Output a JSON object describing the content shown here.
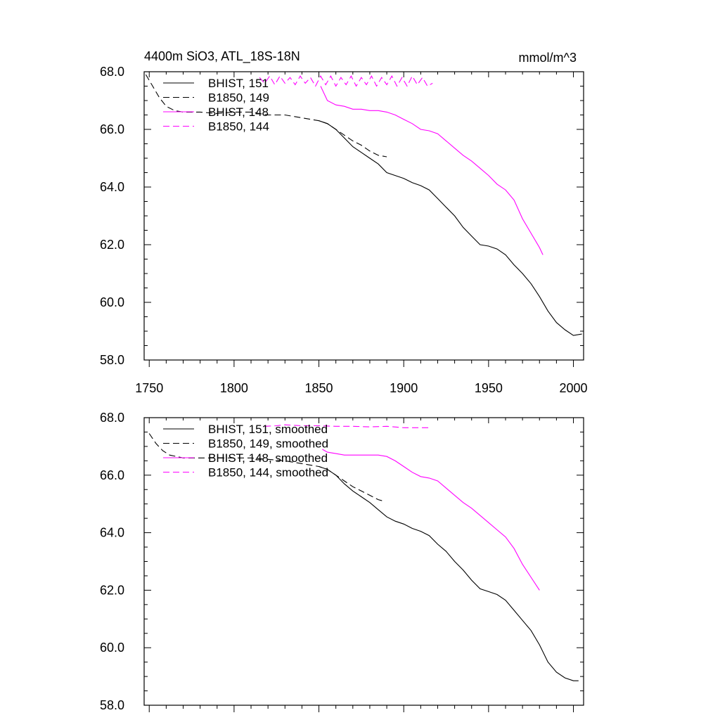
{
  "chart_data": [
    {
      "type": "line",
      "title": "4400m SiO3, ATL_18S-18N",
      "units": "mmol/m^3",
      "xlim": [
        1747,
        2006
      ],
      "ylim": [
        58,
        68
      ],
      "xticks": [
        1750,
        1800,
        1850,
        1900,
        1950,
        2000
      ],
      "yticks": [
        58,
        60,
        62,
        64,
        66,
        68
      ],
      "ytick_labels": [
        "58.0",
        "60.0",
        "62.0",
        "64.0",
        "66.0",
        "68.0"
      ],
      "xtick_labels": [
        "1750",
        "1800",
        "1850",
        "1900",
        "1950",
        "2000"
      ],
      "show_xtick_labels": true,
      "grid": false,
      "legend_position": "top-left",
      "series": [
        {
          "name": "BHIST, 151",
          "color": "#000000",
          "dash": "solid",
          "x": [
            1850,
            1855,
            1860,
            1865,
            1870,
            1875,
            1880,
            1885,
            1890,
            1895,
            1900,
            1905,
            1910,
            1915,
            1920,
            1925,
            1930,
            1935,
            1940,
            1945,
            1950,
            1955,
            1960,
            1965,
            1970,
            1975,
            1980,
            1985,
            1990,
            1995,
            2000,
            2005
          ],
          "y": [
            66.3,
            66.2,
            66.0,
            65.7,
            65.4,
            65.2,
            65.0,
            64.8,
            64.5,
            64.4,
            64.3,
            64.15,
            64.05,
            63.9,
            63.6,
            63.3,
            63.0,
            62.6,
            62.3,
            62.0,
            61.95,
            61.85,
            61.65,
            61.3,
            61.0,
            60.65,
            60.2,
            59.7,
            59.3,
            59.05,
            58.85,
            58.9
          ]
        },
        {
          "name": "B1850, 149",
          "color": "#000000",
          "dash": "dashed",
          "x": [
            1748,
            1752,
            1756,
            1760,
            1765,
            1770,
            1780,
            1790,
            1800,
            1810,
            1820,
            1830,
            1840,
            1850,
            1855,
            1860,
            1865,
            1870,
            1875,
            1880,
            1885,
            1890
          ],
          "y": [
            67.9,
            67.5,
            67.1,
            66.8,
            66.65,
            66.6,
            66.6,
            66.55,
            66.6,
            66.6,
            66.5,
            66.5,
            66.4,
            66.3,
            66.2,
            66.0,
            65.8,
            65.6,
            65.45,
            65.25,
            65.1,
            65.05
          ]
        },
        {
          "name": "BHIST, 148",
          "color": "#ff00ff",
          "dash": "solid",
          "x": [
            1851,
            1855,
            1860,
            1865,
            1870,
            1875,
            1880,
            1885,
            1890,
            1895,
            1900,
            1905,
            1910,
            1915,
            1920,
            1925,
            1930,
            1935,
            1940,
            1945,
            1950,
            1955,
            1960,
            1965,
            1970,
            1975,
            1980,
            1982
          ],
          "y": [
            67.5,
            67.0,
            66.85,
            66.8,
            66.7,
            66.7,
            66.65,
            66.65,
            66.6,
            66.5,
            66.35,
            66.2,
            66.0,
            65.95,
            65.85,
            65.6,
            65.35,
            65.1,
            64.9,
            64.65,
            64.4,
            64.1,
            63.9,
            63.55,
            62.9,
            62.4,
            61.9,
            61.65
          ]
        },
        {
          "name": "B1850, 144",
          "color": "#ff00ff",
          "dash": "dashed",
          "x": [
            1815,
            1818,
            1821,
            1824,
            1827,
            1830,
            1833,
            1836,
            1839,
            1842,
            1845,
            1848,
            1851,
            1854,
            1857,
            1860,
            1863,
            1866,
            1869,
            1872,
            1875,
            1878,
            1881,
            1884,
            1887,
            1890,
            1893,
            1896,
            1899,
            1902,
            1905,
            1908,
            1911,
            1914,
            1917
          ],
          "y": [
            67.8,
            67.6,
            67.85,
            67.55,
            67.85,
            67.6,
            67.8,
            67.55,
            67.85,
            67.6,
            67.8,
            67.5,
            67.85,
            67.55,
            67.85,
            67.5,
            67.8,
            67.55,
            67.85,
            67.5,
            67.8,
            67.55,
            67.85,
            67.5,
            67.8,
            67.55,
            67.85,
            67.5,
            67.8,
            67.5,
            67.85,
            67.55,
            67.8,
            67.5,
            67.6
          ]
        }
      ]
    },
    {
      "type": "line",
      "title": "",
      "units": "",
      "xlim": [
        1747,
        2006
      ],
      "ylim": [
        58,
        68
      ],
      "xticks": [
        1750,
        1800,
        1850,
        1900,
        1950,
        2000
      ],
      "yticks": [
        58,
        60,
        62,
        64,
        66,
        68
      ],
      "ytick_labels": [
        "58.0",
        "60.0",
        "62.0",
        "64.0",
        "66.0",
        "68.0"
      ],
      "xtick_labels": [],
      "show_xtick_labels": false,
      "grid": false,
      "legend_position": "top-left",
      "series": [
        {
          "name": "BHIST, 151, smoothed",
          "color": "#000000",
          "dash": "solid",
          "x": [
            1850,
            1855,
            1860,
            1865,
            1870,
            1875,
            1880,
            1885,
            1890,
            1895,
            1900,
            1905,
            1910,
            1915,
            1920,
            1925,
            1930,
            1935,
            1940,
            1945,
            1950,
            1955,
            1960,
            1965,
            1970,
            1975,
            1980,
            1985,
            1990,
            1995,
            2000,
            2003
          ],
          "y": [
            66.3,
            66.2,
            66.0,
            65.7,
            65.45,
            65.25,
            65.05,
            64.8,
            64.55,
            64.4,
            64.3,
            64.15,
            64.05,
            63.9,
            63.6,
            63.35,
            63.0,
            62.7,
            62.35,
            62.05,
            61.95,
            61.85,
            61.65,
            61.3,
            60.95,
            60.6,
            60.1,
            59.5,
            59.15,
            58.95,
            58.85,
            58.85
          ]
        },
        {
          "name": "B1850, 149, smoothed",
          "color": "#000000",
          "dash": "dashed",
          "x": [
            1750,
            1754,
            1758,
            1762,
            1766,
            1770,
            1780,
            1790,
            1800,
            1810,
            1820,
            1830,
            1840,
            1850,
            1855,
            1860,
            1865,
            1870,
            1875,
            1880,
            1885,
            1888
          ],
          "y": [
            67.45,
            67.1,
            66.85,
            66.7,
            66.65,
            66.6,
            66.6,
            66.6,
            66.6,
            66.6,
            66.55,
            66.5,
            66.4,
            66.3,
            66.2,
            66.0,
            65.8,
            65.6,
            65.45,
            65.3,
            65.15,
            65.1
          ]
        },
        {
          "name": "BHIST, 148, smoothed",
          "color": "#ff00ff",
          "dash": "solid",
          "x": [
            1852,
            1855,
            1860,
            1865,
            1870,
            1875,
            1880,
            1885,
            1890,
            1895,
            1900,
            1905,
            1910,
            1915,
            1920,
            1925,
            1930,
            1935,
            1940,
            1945,
            1950,
            1955,
            1960,
            1965,
            1970,
            1975,
            1980
          ],
          "y": [
            66.9,
            66.8,
            66.75,
            66.7,
            66.7,
            66.7,
            66.7,
            66.7,
            66.65,
            66.5,
            66.3,
            66.1,
            65.95,
            65.9,
            65.8,
            65.55,
            65.3,
            65.05,
            64.85,
            64.6,
            64.35,
            64.1,
            63.85,
            63.45,
            62.9,
            62.45,
            62.0
          ]
        },
        {
          "name": "B1850, 144, smoothed",
          "color": "#ff00ff",
          "dash": "dashed",
          "x": [
            1818,
            1825,
            1830,
            1840,
            1850,
            1860,
            1870,
            1880,
            1890,
            1900,
            1910,
            1915
          ],
          "y": [
            67.7,
            67.72,
            67.75,
            67.72,
            67.72,
            67.7,
            67.7,
            67.68,
            67.7,
            67.65,
            67.65,
            67.65
          ]
        }
      ]
    }
  ]
}
